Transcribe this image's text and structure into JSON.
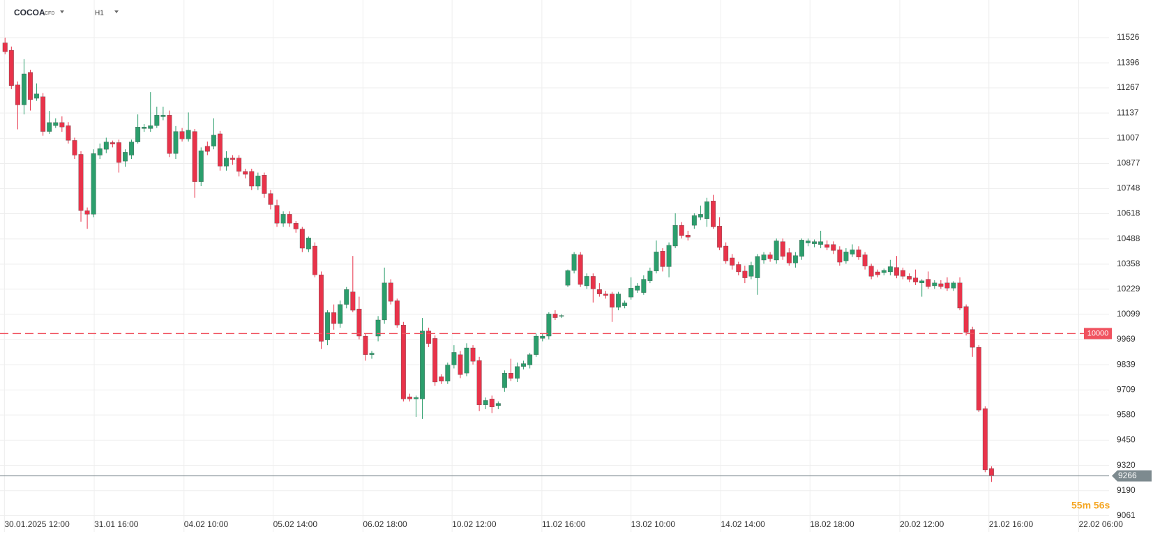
{
  "header": {
    "symbol": "COCOA",
    "kind": "CFD",
    "interval": "H1"
  },
  "chart_data": {
    "type": "candlestick",
    "up_color": "#2b9e6c",
    "down_color": "#e8334a",
    "grid": true,
    "open": [
      11499,
      11461,
      11282,
      11179,
      11347,
      11213,
      11221,
      11042,
      11072,
      11088,
      11072,
      10996,
      10924,
      10634,
      10615,
      10920,
      10950,
      10985,
      10985,
      10889,
      10920,
      10988,
      11057,
      11057,
      11072,
      11118,
      11126,
      10928,
      11042,
      11004,
      11042,
      10783,
      10966,
      10966,
      11030,
      10863,
      10905,
      10905,
      10836,
      10836,
      10760,
      10817,
      10722,
      10661,
      10569,
      10615,
      10569,
      10539,
      10436,
      10451,
      10303,
      9967,
      10108,
      10051,
      10150,
      10215,
      10127,
      9987,
      9891,
      9987,
      10070,
      10261,
      10169,
      10044,
      9674,
      9663,
      9663,
      10013,
      9975,
      9777,
      9754,
      9838,
      9891,
      9796,
      9926,
      9861,
      9632,
      9663,
      9628,
      9720,
      9796,
      9769,
      9830,
      9838,
      9891,
      9975,
      9987,
      10101,
      10089,
      10249,
      10325,
      10406,
      10246,
      10295,
      10227,
      10204,
      10204,
      10135,
      10143,
      10188,
      10223,
      10211,
      10272,
      10322,
      10425,
      10345,
      10451,
      10558,
      10508,
      10558,
      10600,
      10592,
      10684,
      10554,
      10451,
      10390,
      10356,
      10322,
      10295,
      10287,
      10379,
      10406,
      10379,
      10474,
      10417,
      10364,
      10398,
      10467,
      10463,
      10459,
      10459,
      10459,
      10432,
      10375,
      10409,
      10432,
      10406,
      10348,
      10318,
      10314,
      10318,
      10341,
      10326,
      10295,
      10287,
      10261,
      10280,
      10246,
      10257,
      10261,
      10234,
      10261,
      10139,
      10021,
      9929,
      9613,
      9304
    ],
    "high": [
      11526,
      11480,
      11300,
      11415,
      11360,
      11290,
      11240,
      11148,
      11110,
      11120,
      11090,
      11010,
      10940,
      10650,
      10950,
      10980,
      11010,
      10995,
      11000,
      10950,
      11000,
      11130,
      11080,
      11245,
      11170,
      11170,
      11150,
      11070,
      11060,
      11140,
      11055,
      10960,
      10990,
      11110,
      11045,
      10940,
      10920,
      10920,
      10850,
      10850,
      10830,
      10830,
      10740,
      10690,
      10630,
      10630,
      10580,
      10550,
      10500,
      10470,
      10320,
      10120,
      10150,
      10170,
      10240,
      10400,
      10190,
      10000,
      9910,
      10090,
      10340,
      10280,
      10180,
      10060,
      9690,
      9680,
      10080,
      10030,
      9990,
      9790,
      9850,
      9940,
      9910,
      9950,
      9940,
      9880,
      9670,
      9680,
      9650,
      9810,
      9870,
      9850,
      9860,
      9900,
      10000,
      10000,
      10110,
      10120,
      10100,
      10330,
      10420,
      10420,
      10310,
      10310,
      10260,
      10220,
      10215,
      10215,
      10170,
      10290,
      10260,
      10300,
      10340,
      10480,
      10440,
      10470,
      10620,
      10575,
      10530,
      10620,
      10660,
      10700,
      10715,
      10600,
      10470,
      10410,
      10370,
      10350,
      10370,
      10410,
      10420,
      10420,
      10490,
      10490,
      10440,
      10420,
      10490,
      10490,
      10485,
      10530,
      10480,
      10475,
      10450,
      10440,
      10460,
      10450,
      10420,
      10360,
      10330,
      10335,
      10380,
      10400,
      10340,
      10310,
      10330,
      10280,
      10320,
      10275,
      10275,
      10290,
      10270,
      10290,
      10150,
      10035,
      9940,
      9625,
      9315
    ],
    "low": [
      11440,
      11260,
      11053,
      11130,
      11150,
      11200,
      11020,
      11030,
      11060,
      11040,
      10980,
      10900,
      10577,
      10540,
      10600,
      10900,
      10930,
      10960,
      10830,
      10860,
      10900,
      10980,
      11040,
      11040,
      11060,
      11100,
      10910,
      10900,
      10990,
      10990,
      10700,
      10760,
      10920,
      10950,
      10840,
      10840,
      10870,
      10810,
      10800,
      10740,
      10740,
      10700,
      10640,
      10550,
      10550,
      10550,
      10520,
      10420,
      10420,
      10290,
      9920,
      9940,
      10020,
      10030,
      10130,
      10110,
      9970,
      9860,
      9870,
      9960,
      10050,
      10150,
      10030,
      9650,
      9650,
      9570,
      9560,
      9930,
      9730,
      9740,
      9740,
      9820,
      9770,
      9780,
      9840,
      9600,
      9610,
      9590,
      9610,
      9700,
      9755,
      9750,
      9815,
      9820,
      9880,
      9960,
      9970,
      10070,
      10080,
      10240,
      10310,
      10240,
      10230,
      10160,
      10190,
      10180,
      10060,
      10120,
      10130,
      10175,
      10210,
      10200,
      10260,
      10310,
      10320,
      10290,
      10440,
      10490,
      10480,
      10540,
      10585,
      10550,
      10540,
      10430,
      10360,
      10330,
      10300,
      10260,
      10280,
      10200,
      10360,
      10370,
      10360,
      10380,
      10350,
      10340,
      10380,
      10450,
      10445,
      10440,
      10430,
      10410,
      10350,
      10360,
      10395,
      10380,
      10330,
      10280,
      10290,
      10300,
      10300,
      10285,
      10280,
      10265,
      10250,
      10190,
      10230,
      10230,
      10230,
      10220,
      10220,
      10120,
      9990,
      9880,
      9595,
      9285,
      9235
    ],
    "close": [
      11453,
      11278,
      11179,
      11339,
      11206,
      11236,
      11042,
      11088,
      11088,
      11065,
      10996,
      10920,
      10634,
      10615,
      10928,
      10954,
      10988,
      10977,
      10882,
      10935,
      10988,
      11065,
      11065,
      11072,
      11126,
      11126,
      10928,
      11042,
      11004,
      11049,
      10783,
      10943,
      10939,
      11023,
      10863,
      10905,
      10897,
      10836,
      10821,
      10760,
      10813,
      10722,
      10665,
      10569,
      10615,
      10569,
      10539,
      10440,
      10493,
      10303,
      9960,
      10108,
      10051,
      10150,
      10227,
      10120,
      9987,
      9891,
      9899,
      10070,
      10261,
      10166,
      10044,
      9663,
      9663,
      9670,
      10013,
      9948,
      9750,
      9754,
      9838,
      9903,
      9788,
      9926,
      9857,
      9632,
      9655,
      9621,
      9640,
      9796,
      9769,
      9830,
      9845,
      9891,
      9987,
      9987,
      10101,
      10082,
      10093,
      10325,
      10409,
      10253,
      10295,
      10230,
      10204,
      10196,
      10135,
      10204,
      10158,
      10234,
      10246,
      10280,
      10322,
      10421,
      10345,
      10455,
      10558,
      10505,
      10497,
      10608,
      10615,
      10680,
      10550,
      10444,
      10375,
      10352,
      10318,
      10287,
      10352,
      10398,
      10406,
      10386,
      10478,
      10398,
      10364,
      10402,
      10482,
      10478,
      10474,
      10474,
      10444,
      10428,
      10368,
      10421,
      10432,
      10394,
      10348,
      10295,
      10303,
      10326,
      10345,
      10299,
      10295,
      10280,
      10265,
      10272,
      10242,
      10261,
      10242,
      10234,
      10261,
      10131,
      10006,
      9929,
      9605,
      9297,
      9266
    ],
    "xlim": [
      -0.8,
      174.6
    ],
    "xticks": [
      {
        "value": -0.1,
        "label": "30.01.2025 12:00"
      },
      {
        "value": 14.1,
        "label": "31.01 16:00"
      },
      {
        "value": 28.3,
        "label": "04.02 10:00"
      },
      {
        "value": 42.4,
        "label": "05.02 14:00"
      },
      {
        "value": 56.6,
        "label": "06.02 18:00"
      },
      {
        "value": 70.7,
        "label": "10.02 12:00"
      },
      {
        "value": 84.9,
        "label": "11.02 16:00"
      },
      {
        "value": 99,
        "label": "13.02 10:00"
      },
      {
        "value": 113.2,
        "label": "14.02 14:00"
      },
      {
        "value": 127.3,
        "label": "18.02 18:00"
      },
      {
        "value": 141.5,
        "label": "20.02 12:00"
      },
      {
        "value": 155.6,
        "label": "21.02 16:00"
      },
      {
        "value": 169.8,
        "label": "22.02 06:00"
      }
    ],
    "ylim": [
      8977,
      11720
    ],
    "yticks": [
      11526,
      11396,
      11267,
      11137,
      11007,
      10877,
      10748,
      10618,
      10488,
      10358,
      10229,
      10099,
      9969,
      9839,
      9709,
      9580,
      9450,
      9320,
      9190,
      9061
    ],
    "level": 10000,
    "level_color": "#f0525f",
    "last_price": 9266,
    "last_price_color": "#7d8a8f",
    "countdown": "55m 56s"
  }
}
